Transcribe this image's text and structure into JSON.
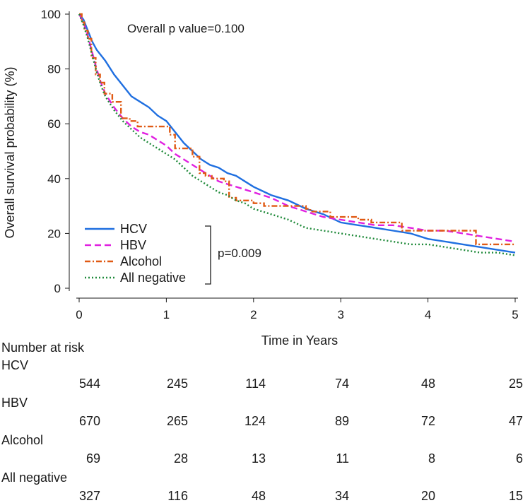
{
  "chart_data": {
    "type": "line",
    "annotation": "Overall p value=0.100",
    "xlabel": "Time in Years",
    "ylabel": "Overall survival probability (%)",
    "xlim": [
      0,
      5
    ],
    "ylim": [
      0,
      100
    ],
    "xticks": [
      "0",
      "1",
      "2",
      "3",
      "4",
      "5"
    ],
    "yticks": [
      "0",
      "20",
      "40",
      "60",
      "80",
      "100"
    ],
    "legend_position": "bottom-left",
    "bracket_label": "p=0.009",
    "grid": false,
    "series": [
      {
        "name": "HCV",
        "color": "#1f6fe0",
        "style": "solid",
        "x": [
          0,
          0.05,
          0.1,
          0.15,
          0.2,
          0.3,
          0.4,
          0.5,
          0.6,
          0.7,
          0.8,
          0.9,
          1.0,
          1.1,
          1.2,
          1.3,
          1.4,
          1.5,
          1.6,
          1.7,
          1.8,
          1.9,
          2.0,
          2.2,
          2.4,
          2.6,
          2.8,
          3.0,
          3.2,
          3.4,
          3.6,
          3.8,
          4.0,
          4.2,
          4.4,
          4.6,
          4.8,
          5.0
        ],
        "y": [
          100,
          98,
          94,
          90,
          87,
          83,
          78,
          74,
          70,
          68,
          66,
          63,
          61,
          57,
          53,
          50,
          47,
          45,
          44,
          42,
          41,
          39,
          37,
          34,
          32,
          29,
          27,
          24,
          23,
          22,
          21,
          20,
          18,
          17,
          16,
          15,
          14,
          13
        ]
      },
      {
        "name": "HBV",
        "color": "#e020e0",
        "style": "dashed",
        "x": [
          0,
          0.05,
          0.1,
          0.15,
          0.2,
          0.25,
          0.3,
          0.4,
          0.5,
          0.6,
          0.7,
          0.8,
          0.9,
          1.0,
          1.1,
          1.2,
          1.3,
          1.4,
          1.5,
          1.6,
          1.7,
          1.8,
          1.9,
          2.0,
          2.2,
          2.4,
          2.6,
          2.8,
          3.0,
          3.2,
          3.4,
          3.6,
          3.8,
          4.0,
          4.2,
          4.4,
          4.6,
          4.8,
          5.0
        ],
        "y": [
          100,
          97,
          92,
          86,
          80,
          75,
          71,
          66,
          62,
          59,
          57,
          56,
          54,
          52,
          49,
          47,
          45,
          43,
          41,
          39,
          38,
          37,
          36,
          35,
          33,
          30,
          28,
          26,
          25,
          24,
          23,
          23,
          22,
          21,
          21,
          20,
          19,
          18,
          17
        ]
      },
      {
        "name": "Alcohol",
        "color": "#e05a14",
        "style": "dashdot",
        "step": true,
        "x": [
          0,
          0.03,
          0.06,
          0.1,
          0.14,
          0.19,
          0.24,
          0.29,
          0.38,
          0.48,
          0.58,
          0.67,
          0.72,
          1.0,
          1.04,
          1.1,
          1.3,
          1.38,
          1.45,
          1.52,
          1.66,
          1.72,
          1.8,
          2.0,
          2.12,
          2.2,
          2.5,
          2.6,
          2.65,
          2.75,
          2.88,
          3.2,
          3.35,
          3.7,
          4.5,
          4.55,
          5.0
        ],
        "y": [
          100,
          97,
          94,
          91,
          84,
          78,
          75,
          71,
          68,
          62,
          61,
          59,
          59,
          59,
          56,
          51,
          48,
          42,
          41,
          40,
          39,
          33,
          32,
          31,
          30,
          30,
          30,
          29,
          28,
          28,
          26,
          25,
          24,
          21,
          21,
          16,
          16
        ]
      },
      {
        "name": "All negative",
        "color": "#1f8a3a",
        "style": "dotted",
        "x": [
          0,
          0.05,
          0.1,
          0.15,
          0.2,
          0.25,
          0.3,
          0.4,
          0.5,
          0.6,
          0.7,
          0.8,
          0.9,
          1.0,
          1.1,
          1.2,
          1.3,
          1.4,
          1.5,
          1.6,
          1.7,
          1.8,
          1.9,
          2.0,
          2.2,
          2.4,
          2.6,
          2.8,
          3.0,
          3.2,
          3.4,
          3.6,
          3.8,
          4.0,
          4.2,
          4.4,
          4.6,
          4.8,
          5.0
        ],
        "y": [
          100,
          96,
          91,
          85,
          79,
          74,
          70,
          65,
          61,
          58,
          55,
          53,
          51,
          49,
          47,
          44,
          41,
          39,
          37,
          35,
          34,
          32,
          31,
          29,
          27,
          25,
          22,
          21,
          20,
          19,
          18,
          17,
          16,
          16,
          15,
          14,
          13,
          13,
          12
        ]
      }
    ],
    "risk_table": {
      "title": "Number at risk",
      "groups": [
        {
          "name": "HCV",
          "counts": [
            "544",
            "245",
            "114",
            "74",
            "48",
            "25"
          ]
        },
        {
          "name": "HBV",
          "counts": [
            "670",
            "265",
            "124",
            "89",
            "72",
            "47"
          ]
        },
        {
          "name": "Alcohol",
          "counts": [
            "69",
            "28",
            "13",
            "11",
            "8",
            "6"
          ]
        },
        {
          "name": "All negative",
          "counts": [
            "327",
            "116",
            "48",
            "34",
            "20",
            "15"
          ]
        }
      ]
    }
  }
}
